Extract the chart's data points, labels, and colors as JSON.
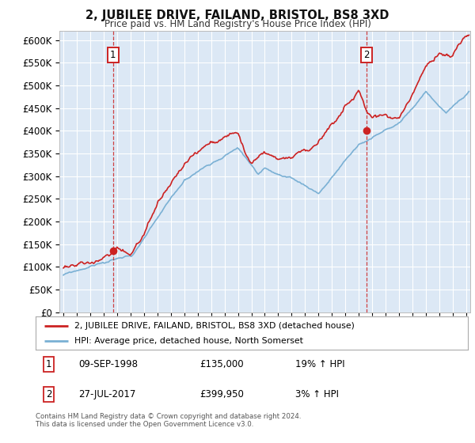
{
  "title": "2, JUBILEE DRIVE, FAILAND, BRISTOL, BS8 3XD",
  "subtitle": "Price paid vs. HM Land Registry's House Price Index (HPI)",
  "background_color": "#ffffff",
  "plot_bg_color": "#dce8f5",
  "grid_color": "#ffffff",
  "ylim": [
    0,
    620000
  ],
  "yticks": [
    0,
    50000,
    100000,
    150000,
    200000,
    250000,
    300000,
    350000,
    400000,
    450000,
    500000,
    550000,
    600000
  ],
  "xlim_start": 1994.7,
  "xlim_end": 2025.3,
  "red_line_color": "#cc2222",
  "blue_line_color": "#7ab0d4",
  "dashed_line_color": "#cc2222",
  "marker_color": "#cc2222",
  "purchase1_x": 1998.69,
  "purchase1_y": 135000,
  "purchase2_x": 2017.57,
  "purchase2_y": 399950,
  "legend_address": "2, JUBILEE DRIVE, FAILAND, BRISTOL, BS8 3XD (detached house)",
  "legend_hpi": "HPI: Average price, detached house, North Somerset",
  "table_row1_num": "1",
  "table_row1_date": "09-SEP-1998",
  "table_row1_price": "£135,000",
  "table_row1_hpi": "19% ↑ HPI",
  "table_row2_num": "2",
  "table_row2_date": "27-JUL-2017",
  "table_row2_price": "£399,950",
  "table_row2_hpi": "3% ↑ HPI",
  "footer": "Contains HM Land Registry data © Crown copyright and database right 2024.\nThis data is licensed under the Open Government Licence v3.0."
}
